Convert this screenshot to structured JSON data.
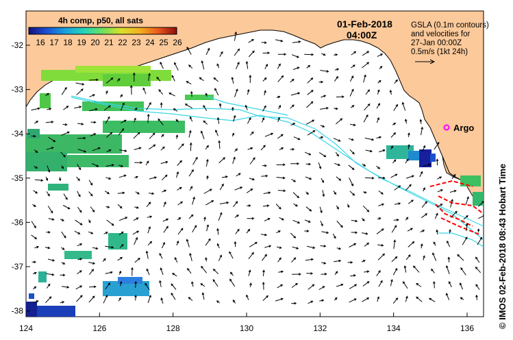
{
  "map": {
    "date": "01-Feb-2018",
    "time": "04:00Z",
    "colorbar_title": "4h comp, p50, all sats",
    "colorbar_ticks": [
      "16",
      "17",
      "18",
      "19",
      "20",
      "21",
      "22",
      "23",
      "24",
      "25",
      "26"
    ],
    "legend_lines": [
      "GSLA (0.1m contours)",
      "and velocities for",
      "27-Jan 00:00Z",
      "0.5m/s (1kt 24h)"
    ],
    "argo_label": "Argo",
    "credit": "© IMOS 02-Feb-2018 08:43 Hobart Time",
    "x_ticks": [
      "124",
      "126",
      "128",
      "130",
      "132",
      "134",
      "136"
    ],
    "y_ticks": [
      "-32",
      "-33",
      "-34",
      "-35",
      "-36",
      "-37",
      "-38"
    ],
    "colors": {
      "land": "#fbc99a",
      "contour": "#39d6e6",
      "argo": "#ff00ff",
      "front": "#ff0000"
    }
  }
}
